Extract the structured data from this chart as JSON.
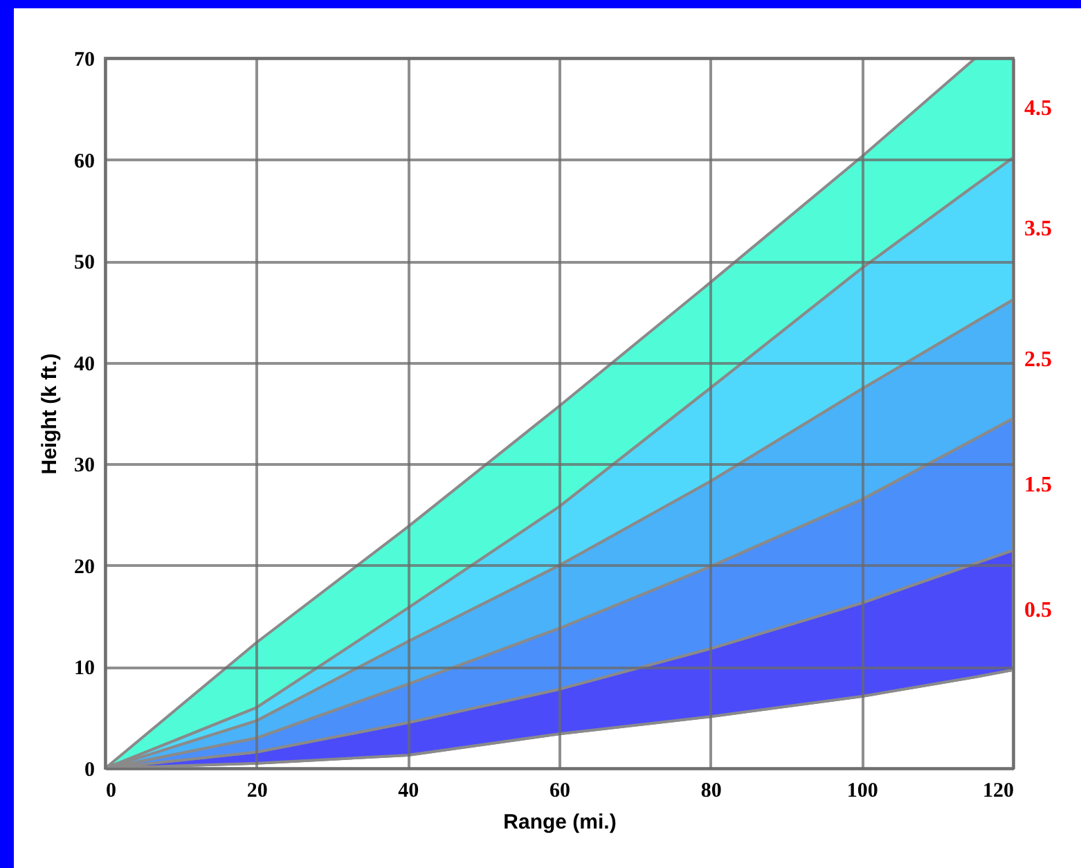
{
  "chart_data": {
    "type": "area",
    "stacked": true,
    "xlabel": "Range (mi.)",
    "ylabel": "Height (k ft.)",
    "x": [
      0,
      20,
      40,
      60,
      80,
      100,
      115,
      120
    ],
    "series": [
      {
        "color": "#ffffff",
        "values": [
          0,
          0.5,
          1.3,
          3.4,
          5.1,
          7.1,
          9.0,
          9.7
        ]
      },
      {
        "name": "0.5",
        "color": "#4b4bfa",
        "values": [
          0,
          1.1,
          3.2,
          4.4,
          6.7,
          9.2,
          11.2,
          11.8
        ]
      },
      {
        "name": "1.5",
        "color": "#4b8ffa",
        "values": [
          0,
          1.4,
          3.8,
          6.0,
          8.1,
          10.2,
          12.3,
          13.0
        ]
      },
      {
        "name": "2.5",
        "color": "#4ab2f8",
        "values": [
          0,
          1.7,
          4.2,
          6.2,
          8.4,
          10.9,
          11.5,
          11.7
        ]
      },
      {
        "name": "3.5",
        "color": "#50d8fc",
        "values": [
          0,
          1.3,
          3.3,
          5.8,
          9.2,
          11.9,
          13.5,
          14.0
        ]
      },
      {
        "name": "4.5",
        "color": "#50fcd8",
        "values": [
          0,
          6.4,
          8.0,
          9.9,
          10.4,
          11.0,
          12.5,
          9.8
        ]
      }
    ],
    "xlim": [
      0,
      120
    ],
    "xticks": [
      0,
      20,
      40,
      60,
      80,
      100,
      120
    ],
    "ylim": [
      0,
      70
    ],
    "yticks": [
      0,
      10,
      20,
      30,
      40,
      50,
      60,
      70
    ],
    "grid": true,
    "legend": false
  }
}
